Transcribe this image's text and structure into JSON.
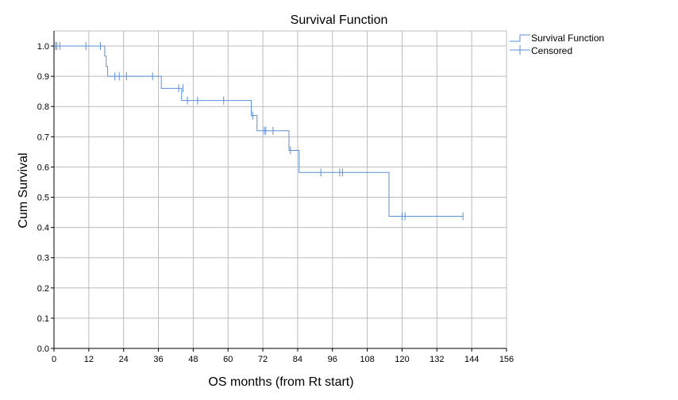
{
  "chart_data": {
    "type": "line",
    "title": "Survival Function",
    "xlabel": "OS months (from Rt start)",
    "ylabel": "Cum Survival",
    "xlim": [
      0,
      156
    ],
    "ylim": [
      0,
      1.05
    ],
    "x_ticks": [
      0,
      12,
      24,
      36,
      48,
      60,
      72,
      84,
      96,
      108,
      120,
      132,
      144,
      156
    ],
    "y_ticks": [
      0.0,
      0.1,
      0.2,
      0.3,
      0.4,
      0.5,
      0.6,
      0.7,
      0.8,
      0.9,
      1.0
    ],
    "x_tick_labels": [
      "0",
      "12",
      "24",
      "36",
      "48",
      "60",
      "72",
      "84",
      "96",
      "108",
      "120",
      "132",
      "144",
      "156"
    ],
    "y_tick_labels": [
      "0.0",
      "0.1",
      "0.2",
      "0.3",
      "0.4",
      "0.5",
      "0.6",
      "0.7",
      "0.8",
      "0.9",
      "1.0"
    ],
    "grid": true,
    "legend_position": "top-right",
    "color": "#5b8fd6",
    "series": [
      {
        "name": "Survival Function",
        "kind": "step",
        "x": [
          0,
          17.5,
          18,
          18.5,
          37,
          44,
          68,
          70,
          71.5,
          81,
          84.5,
          115.5,
          141
        ],
        "y": [
          1.0,
          0.967,
          0.933,
          0.9,
          0.86,
          0.82,
          0.77,
          0.72,
          0.72,
          0.655,
          0.582,
          0.437,
          0.437
        ]
      },
      {
        "name": "Censored",
        "kind": "marker",
        "x": [
          0.5,
          1,
          2,
          11,
          16,
          21,
          22.5,
          25,
          34,
          43,
          44.5,
          46,
          49.5,
          58.5,
          68.5,
          72.5,
          73,
          75.5,
          81.5,
          92,
          98.5,
          99.5,
          120,
          121,
          141
        ],
        "y": [
          1.0,
          1.0,
          1.0,
          1.0,
          1.0,
          0.9,
          0.9,
          0.9,
          0.9,
          0.86,
          0.86,
          0.82,
          0.82,
          0.82,
          0.77,
          0.72,
          0.72,
          0.72,
          0.655,
          0.582,
          0.582,
          0.582,
          0.437,
          0.437,
          0.437
        ]
      }
    ]
  }
}
